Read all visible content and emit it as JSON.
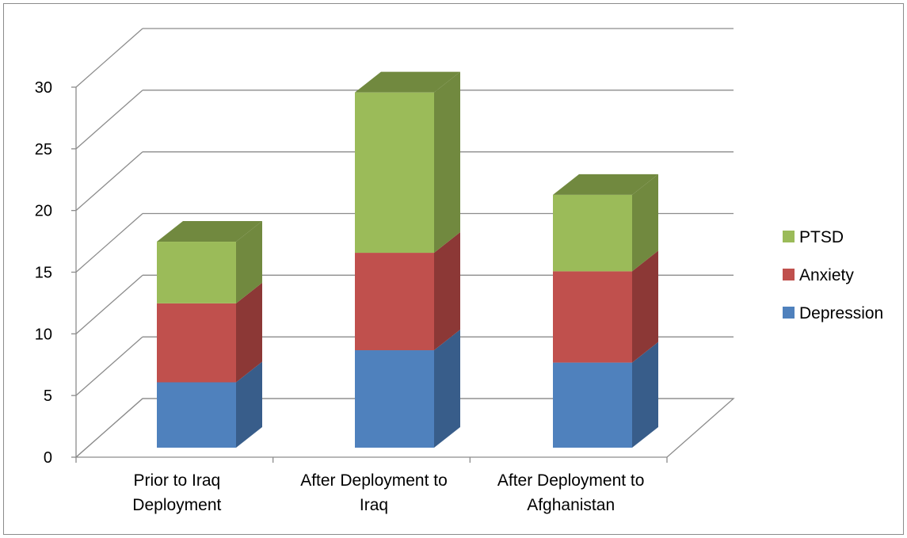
{
  "chart_data": {
    "type": "bar",
    "stacked": true,
    "three_d": true,
    "categories": [
      [
        "Prior to Iraq",
        "Deployment"
      ],
      [
        "After Deployment to",
        "Iraq"
      ],
      [
        "After Deployment to",
        "Afghanistan"
      ]
    ],
    "series": [
      {
        "name": "Depression",
        "values": [
          5.3,
          7.9,
          6.9
        ],
        "color": "#4f81bd",
        "side_color": "#385d8a"
      },
      {
        "name": "Anxiety",
        "values": [
          6.4,
          7.9,
          7.4
        ],
        "color": "#c0504d",
        "side_color": "#8c3836"
      },
      {
        "name": "PTSD",
        "values": [
          5.0,
          13.0,
          6.2
        ],
        "color": "#9bbb59",
        "side_color": "#71893f"
      }
    ],
    "ylim": [
      0,
      30
    ],
    "yticks": [
      "0",
      "5",
      "10",
      "15",
      "20",
      "25",
      "30"
    ],
    "grid": true,
    "legend_position": "right",
    "legend_order": [
      "PTSD",
      "Anxiety",
      "Depression"
    ],
    "title": "",
    "xlabel": "",
    "ylabel": ""
  }
}
